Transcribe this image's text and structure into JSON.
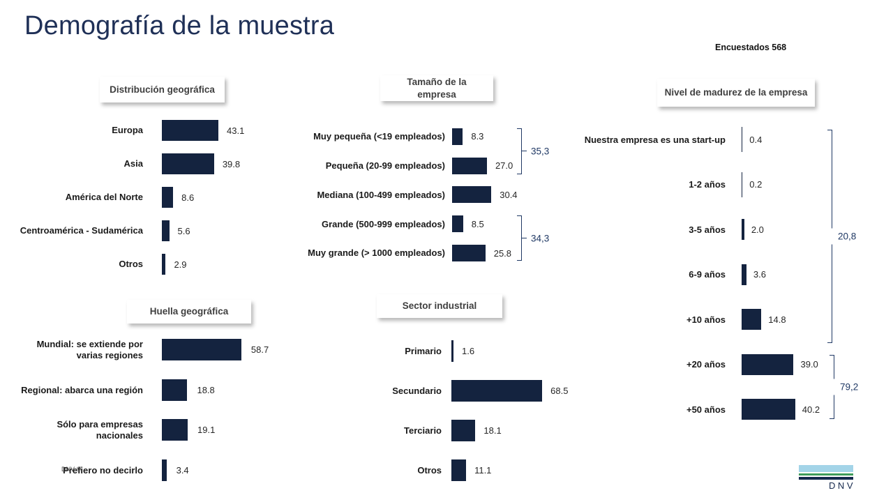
{
  "page": {
    "title": "Demografía de la muestra",
    "respondents_label": "Encuestados 568",
    "footer_note": "DNV ©",
    "logo": {
      "text": "DNV"
    }
  },
  "colors": {
    "bar": "#14233f",
    "title_text": "#1f3057",
    "bracket": "#1f3864",
    "header_text": "#3f3f3f",
    "label_text": "#1a1a1a",
    "value_text": "#262626",
    "logo_light_blue": "#a3d4e8",
    "logo_green": "#3f9c5a",
    "logo_navy": "#16294d"
  },
  "chart_data": [
    {
      "id": "geografica",
      "type": "bar",
      "orientation": "horizontal",
      "title": "Distribución geográfica",
      "unit": "%",
      "categories": [
        "Europa",
        "Asia",
        "América del Norte",
        "Centroamérica - Sudamérica",
        "Otros"
      ],
      "values": [
        43.1,
        39.8,
        8.6,
        5.6,
        2.9
      ]
    },
    {
      "id": "tamano",
      "type": "bar",
      "orientation": "horizontal",
      "title": "Tamaño de la empresa",
      "unit": "%",
      "categories": [
        "Muy pequeña (<19 empleados)",
        "Pequeña (20-99 empleados)",
        "Mediana (100-499 empleados)",
        "Grande (500-999 empleados)",
        "Muy grande (> 1000 empleados)"
      ],
      "values": [
        8.3,
        27.0,
        30.4,
        8.5,
        25.8
      ],
      "brackets": [
        {
          "from": 0,
          "to": 1,
          "label": "35,3"
        },
        {
          "from": 3,
          "to": 4,
          "label": "34,3"
        }
      ]
    },
    {
      "id": "madurez",
      "type": "bar",
      "orientation": "horizontal",
      "title": "Nivel de madurez de la empresa",
      "unit": "%",
      "categories": [
        "Nuestra empresa es una start-up",
        "1-2 años",
        "3-5 años",
        "6-9 años",
        "+10 años",
        "+20 años",
        "+50 años"
      ],
      "values": [
        0.4,
        0.2,
        2.0,
        3.6,
        14.8,
        39.0,
        40.2
      ],
      "brackets": [
        {
          "from": 0,
          "to": 4,
          "label": "20,8"
        },
        {
          "from": 5,
          "to": 6,
          "label": "79,2"
        }
      ]
    },
    {
      "id": "huella",
      "type": "bar",
      "orientation": "horizontal",
      "title": "Huella geográfica",
      "unit": "%",
      "categories": [
        "Mundial: se extiende por varias regiones",
        "Regional: abarca una región",
        "Sólo para empresas nacionales",
        "Prefiero no decirlo"
      ],
      "values": [
        58.7,
        18.8,
        19.1,
        3.4
      ]
    },
    {
      "id": "sector",
      "type": "bar",
      "orientation": "horizontal",
      "title": "Sector industrial",
      "unit": "%",
      "categories": [
        "Primario",
        "Secundario",
        "Terciario",
        "Otros"
      ],
      "values": [
        1.6,
        68.5,
        18.1,
        11.1
      ]
    }
  ]
}
